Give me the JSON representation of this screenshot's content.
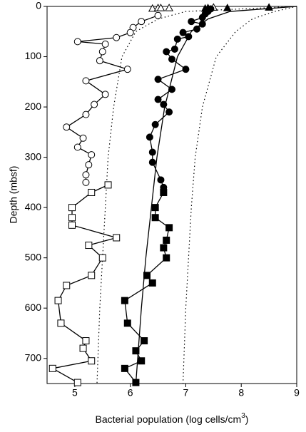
{
  "chart_data": {
    "type": "scatter",
    "x_label": "Bacterial population (log cells/cm",
    "x_label_sup": "3",
    "x_label_end": ")",
    "y_label": "Depth (mbsf)",
    "xlim": [
      4.5,
      9
    ],
    "ylim": [
      750,
      0
    ],
    "xticks": [
      5,
      6,
      7,
      8,
      9
    ],
    "yticks": [
      0,
      100,
      200,
      300,
      400,
      500,
      600,
      700
    ],
    "grid": false,
    "series": [
      {
        "marker": "circle",
        "fill": "#ffffff",
        "color": "#000000",
        "line": "solid",
        "x": [
          6.5,
          6.2,
          6.05,
          6.0,
          5.75,
          5.05,
          5.55,
          5.5,
          5.45,
          5.95,
          5.2,
          5.55,
          5.35,
          5.2,
          4.85,
          5.15,
          5.05,
          5.3,
          5.25,
          5.2,
          5.2
        ],
        "y": [
          18,
          30,
          42,
          52,
          62,
          70,
          75,
          90,
          108,
          125,
          148,
          175,
          195,
          215,
          240,
          262,
          280,
          295,
          315,
          335,
          350
        ]
      },
      {
        "marker": "square",
        "fill": "#ffffff",
        "color": "#000000",
        "line": "solid",
        "x": [
          5.6,
          5.3,
          4.95,
          4.95,
          4.95,
          5.75,
          5.25,
          5.5,
          5.3,
          4.85,
          4.7,
          4.75,
          5.2,
          5.15,
          5.3,
          4.6,
          5.05
        ],
        "y": [
          355,
          370,
          400,
          420,
          435,
          460,
          475,
          500,
          535,
          555,
          585,
          630,
          665,
          680,
          705,
          720,
          748
        ]
      },
      {
        "marker": "triangle",
        "fill": "#ffffff",
        "color": "#000000",
        "x": [
          6.4,
          6.5,
          6.55,
          6.7,
          7.5
        ],
        "y": [
          4,
          3,
          3,
          3,
          2
        ]
      },
      {
        "marker": "circle",
        "fill": "#000000",
        "color": "#000000",
        "line": "solid",
        "x": [
          7.45,
          7.4,
          7.35,
          7.3,
          7.1,
          7.3,
          7.2,
          6.95,
          7.05,
          6.85,
          6.8,
          6.65,
          6.75,
          7.0,
          6.5,
          6.75,
          6.5,
          6.6,
          6.7,
          6.45,
          6.35,
          6.4,
          6.4,
          6.55,
          6.6
        ],
        "y": [
          5,
          10,
          15,
          22,
          30,
          35,
          45,
          52,
          60,
          65,
          85,
          90,
          105,
          125,
          145,
          165,
          185,
          195,
          210,
          235,
          260,
          290,
          310,
          345,
          360
        ]
      },
      {
        "marker": "square",
        "fill": "#000000",
        "color": "#000000",
        "line": "solid",
        "x": [
          6.6,
          6.45,
          6.45,
          6.7,
          6.65,
          6.6,
          6.65,
          6.3,
          6.4,
          5.9,
          5.95,
          6.25,
          6.1,
          6.2,
          5.9,
          6.1
        ],
        "y": [
          370,
          400,
          420,
          440,
          465,
          480,
          500,
          535,
          550,
          585,
          630,
          665,
          685,
          705,
          720,
          748
        ]
      },
      {
        "marker": "triangle",
        "fill": "#000000",
        "color": "#000000",
        "x": [
          7.35,
          7.4,
          7.75,
          8.5
        ],
        "y": [
          4,
          3,
          3,
          2
        ]
      },
      {
        "color": "#000000",
        "line": "solid",
        "x": [
          9,
          7.8,
          7.4,
          7.1,
          6.85,
          6.62,
          6.48,
          6.38,
          6.28,
          6.2,
          6.1
        ],
        "y": [
          0,
          10,
          25,
          50,
          100,
          200,
          300,
          400,
          500,
          600,
          750
        ]
      },
      {
        "color": "#000000",
        "line": "dotted",
        "x": [
          9,
          7.0,
          6.5,
          6.1,
          5.85,
          5.7,
          5.6,
          5.55,
          5.5,
          5.45,
          5.4
        ],
        "y": [
          0,
          10,
          25,
          50,
          100,
          200,
          300,
          400,
          500,
          600,
          750
        ]
      },
      {
        "color": "#000000",
        "line": "dotted",
        "x": [
          9,
          8.6,
          8.2,
          7.9,
          7.55,
          7.3,
          7.17,
          7.1,
          7.05,
          7.0,
          6.95
        ],
        "y": [
          0,
          10,
          25,
          50,
          100,
          200,
          300,
          400,
          500,
          600,
          750
        ]
      }
    ]
  }
}
